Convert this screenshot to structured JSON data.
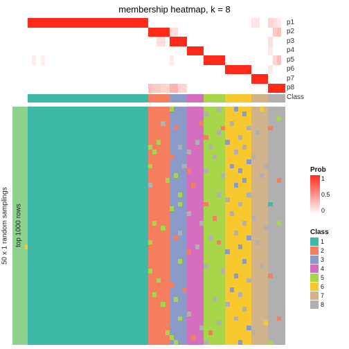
{
  "title": "membership heatmap, k = 8",
  "yAxisLabel": "50 x 1 random samplings",
  "sideStripLabel": "top 1000 rows",
  "classPalette": [
    "#3EB8A7",
    "#F47E5D",
    "#8A9BC9",
    "#D66EC0",
    "#A8D64B",
    "#F7C92E",
    "#D2B48C",
    "#B0B0B0"
  ],
  "white": "#FFFFFF",
  "probLegend": {
    "title": "Prob",
    "gradient": [
      "#FFFFFF",
      "#FF2A1A"
    ],
    "ticks": [
      "1",
      "0.5",
      "0"
    ]
  },
  "classLegend": {
    "title": "Class",
    "items": [
      "1",
      "2",
      "3",
      "4",
      "5",
      "6",
      "7",
      "8"
    ]
  },
  "membership": {
    "rows": [
      "p1",
      "p2",
      "p3",
      "p4",
      "p5",
      "p6",
      "p7",
      "p8"
    ],
    "nCols": 60,
    "breakpoints": [
      0,
      28,
      33,
      37,
      41,
      46,
      52,
      56,
      60
    ],
    "offdiag": {
      "0": {
        "52": 0.12,
        "53": 0.12,
        "56": 0.2,
        "57": 0.15,
        "58": 0.1
      },
      "1": {
        "33": 0.15,
        "34": 0.15,
        "29": 0.2,
        "30": 0.2,
        "57": 0.25,
        "58": 0.3
      },
      "2": {
        "30": 0.15,
        "31": 0.15,
        "56": 0.15
      },
      "3": {
        "56": 0.1
      },
      "4": {
        "1": 0.08,
        "3": 0.08,
        "33": 0.1,
        "58": 0.3,
        "57": 0.2
      },
      "5": {
        "56": 0.1
      },
      "6": {},
      "7": {
        "28": 0.3,
        "29": 0.25,
        "30": 0.25,
        "31": 0.2,
        "32": 0.2,
        "33": 0.35,
        "34": 0.35,
        "35": 0.2,
        "36": 0.2,
        "58": 0.25
      }
    }
  },
  "classStrip": {
    "nCols": 60
  },
  "bottomHeat": {
    "nRows": 50,
    "nCols": 60,
    "variants": {
      "28": {
        "5": 1,
        "8": 4,
        "12": 4,
        "16": 7,
        "22": 1,
        "28": 4,
        "34": 4,
        "38": 1,
        "44": 1
      },
      "29": {
        "9": 4,
        "17": 1,
        "24": 4,
        "33": 1,
        "39": 4,
        "46": 1
      },
      "30": {
        "7": 4,
        "19": 1,
        "36": 4,
        "42": 1
      },
      "31": {
        "3": 7,
        "11": 1,
        "25": 4,
        "29": 1,
        "41": 4
      },
      "32": {
        "6": 1,
        "15": 4,
        "31": 1,
        "47": 4
      },
      "33": {
        "0": 4,
        "10": 1,
        "21": 4,
        "37": 1,
        "48": 4
      },
      "34": {
        "4": 1,
        "14": 4,
        "27": 1,
        "40": 4,
        "49": 4
      },
      "35": {
        "8": 7,
        "18": 4,
        "20": 4,
        "26": 7,
        "32": 4,
        "44": 4
      },
      "36": {
        "12": 7,
        "38": 1
      },
      "37": {
        "5": 3,
        "9": 7,
        "13": 1,
        "22": 7,
        "30": 1,
        "43": 7
      },
      "38": {
        "16": 1,
        "35": 3,
        "48": 1
      },
      "39": {
        "7": 7,
        "19": 3,
        "29": 7
      },
      "40": {
        "3": 1,
        "24": 7,
        "39": 3,
        "46": 7
      },
      "41": {
        "1": 7,
        "6": 1,
        "13": 7,
        "20": 1,
        "26": 4,
        "33": 7,
        "42": 4,
        "49": 7
      },
      "42": {
        "8": 7,
        "15": 4,
        "27": 7,
        "36": 4,
        "47": 1
      },
      "43": {
        "2": 4,
        "10": 7,
        "17": 4,
        "23": 1,
        "31": 4,
        "40": 7
      },
      "44": {
        "0": 7,
        "5": 7,
        "11": 4,
        "18": 7,
        "21": 4,
        "28": 1,
        "37": 4,
        "45": 7
      },
      "45": {
        "4": 1,
        "14": 7,
        "25": 4,
        "34": 7,
        "48": 4
      },
      "46": {
        "7": 2,
        "19": 7,
        "30": 2,
        "41": 7
      },
      "47": {
        "3": 7,
        "12": 2,
        "22": 7,
        "38": 2
      },
      "48": {
        "0": 2,
        "9": 7,
        "16": 2,
        "26": 7,
        "35": 2,
        "44": 7
      },
      "49": {
        "6": 7,
        "13": 2,
        "20": 7,
        "29": 2,
        "39": 7,
        "49": 2
      },
      "50": {
        "1": 2,
        "8": 7,
        "15": 2,
        "24": 7,
        "32": 2,
        "42": 7
      },
      "51": {
        "4": 7,
        "11": 2,
        "18": 7,
        "27": 2,
        "36": 7,
        "46": 2
      },
      "52": {
        "2": 6,
        "10": 7,
        "23": 7,
        "37": 6,
        "47": 7
      },
      "53": {
        "5": 7,
        "17": 6,
        "28": 7,
        "40": 6
      },
      "54": {
        "0": 5,
        "7": 6,
        "14": 7,
        "21": 6,
        "33": 7,
        "48": 6
      },
      "55": {
        "3": 6,
        "12": 7,
        "19": 6,
        "25": 7,
        "31": 6,
        "45": 5
      },
      "56": {
        "4": 1,
        "9": 7,
        "20": 0,
        "35": 1,
        "49": 4
      },
      "57": {
        "6": 7,
        "22": 7,
        "38": 7
      },
      "58": {
        "2": 4,
        "10": 7,
        "15": 1,
        "24": 4,
        "34": 7,
        "44": 1
      },
      "59": {
        "8": 7,
        "17": 7,
        "29": 7,
        "41": 7
      }
    }
  },
  "leftColStrip": {
    "color": "#8FD18F",
    "exception": {
      "row": 29,
      "color": "#F7C92E"
    }
  },
  "layout": {
    "titleFontSize": 13,
    "labelFontSize": 10
  }
}
